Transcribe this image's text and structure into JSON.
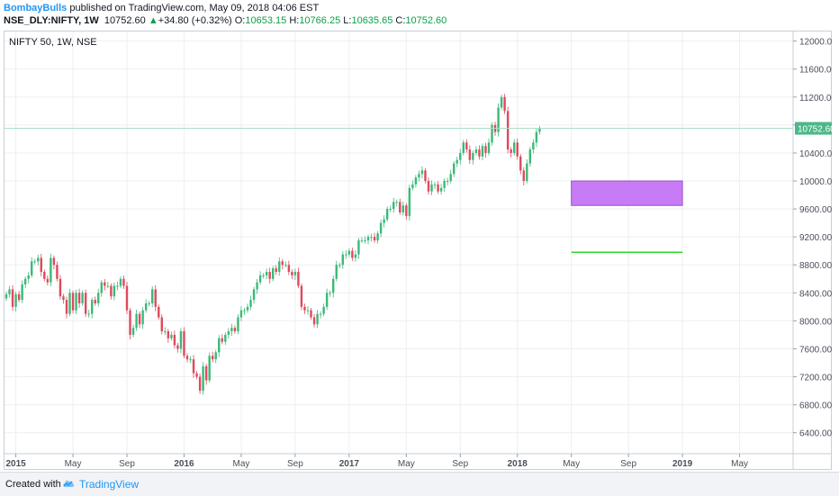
{
  "header": {
    "author": "BombayBulls",
    "published": "published on TradingView.com, May 09, 2018 04:06 EST",
    "symbol": "NSE_DLY:NIFTY, 1W",
    "last": "10752.60",
    "change": "+34.80 (+0.32%)",
    "o_label": "O:",
    "o_value": "10653.15",
    "h_label": "H:",
    "h_value": "10766.25",
    "l_label": "L:",
    "l_value": "10635.65",
    "c_label": "C:",
    "c_value": "10752.60"
  },
  "footer": {
    "created": "Created with",
    "brand": "TradingView",
    "logo_icon": "tradingview-cloud-icon"
  },
  "colors": {
    "up": "#3cb878",
    "down": "#e0495c",
    "rect_fill": "#c77cf5",
    "rect_border": "#9c4fd2",
    "level_line": "#2ad62a",
    "price_line": "#a8dfc6",
    "price_tag": "#4cb788",
    "grid": "#eceff3"
  },
  "chart_data": {
    "type": "candlestick",
    "legend_title": "NIFTY 50, 1W, NSE",
    "price_tag": "10752.60",
    "ylim": [
      6100,
      12150
    ],
    "y_ticks": [
      6400,
      6800,
      7200,
      7600,
      8000,
      8400,
      8800,
      9200,
      9600,
      10000,
      10400,
      10800,
      11200,
      11600,
      12000
    ],
    "y_tick_labels": [
      "6400.00",
      "6800.00",
      "7200.00",
      "7600.00",
      "8000.00",
      "8400.00",
      "8800.00",
      "9200.00",
      "9600.00",
      "10000.00",
      "10400.00",
      "10800.00",
      "11200.00",
      "11600.00",
      "12000.00"
    ],
    "x_tick_labels": [
      "2015",
      "May",
      "Sep",
      "2016",
      "May",
      "Sep",
      "2017",
      "May",
      "Sep",
      "2018",
      "May",
      "Sep",
      "2019",
      "May"
    ],
    "x_tick_bold": [
      true,
      false,
      false,
      true,
      false,
      false,
      true,
      false,
      false,
      true,
      false,
      false,
      true,
      false
    ],
    "x_tick_weeks": [
      3,
      21,
      38,
      56,
      74,
      91,
      108,
      126,
      143,
      161,
      178,
      196,
      213,
      231
    ],
    "last_price": 10752.6,
    "zone": {
      "from_week": 178,
      "to_week": 213,
      "low": 9650,
      "high": 10000
    },
    "level_line": {
      "from_week": 178,
      "to_week": 213,
      "price": 8980
    },
    "closes": [
      8380,
      8450,
      8200,
      8380,
      8300,
      8520,
      8600,
      8650,
      8850,
      8850,
      8900,
      8700,
      8600,
      8550,
      8900,
      8800,
      8600,
      8350,
      8300,
      8100,
      8400,
      8150,
      8400,
      8250,
      8400,
      8100,
      8100,
      8300,
      8250,
      8400,
      8550,
      8500,
      8500,
      8350,
      8500,
      8500,
      8600,
      8500,
      8150,
      7800,
      7900,
      8100,
      7950,
      8150,
      8250,
      8250,
      8450,
      8200,
      8050,
      7850,
      7850,
      7750,
      7800,
      7650,
      7600,
      7850,
      7500,
      7450,
      7450,
      7250,
      7200,
      7000,
      7350,
      7150,
      7500,
      7450,
      7550,
      7750,
      7700,
      7800,
      7850,
      7900,
      7850,
      8050,
      8150,
      8150,
      8200,
      8300,
      8450,
      8550,
      8650,
      8650,
      8700,
      8600,
      8750,
      8700,
      8850,
      8800,
      8800,
      8700,
      8650,
      8700,
      8500,
      8200,
      8150,
      8150,
      8050,
      7950,
      8100,
      8100,
      8200,
      8400,
      8400,
      8600,
      8800,
      8800,
      8950,
      8950,
      9000,
      8900,
      8950,
      9150,
      9150,
      9150,
      9200,
      9200,
      9150,
      9250,
      9400,
      9450,
      9600,
      9600,
      9700,
      9700,
      9550,
      9650,
      9500,
      9900,
      9950,
      10050,
      10100,
      10150,
      10000,
      9850,
      9950,
      9950,
      9850,
      9900,
      10000,
      10000,
      10100,
      10250,
      10300,
      10400,
      10550,
      10450,
      10300,
      10400,
      10450,
      10350,
      10500,
      10400,
      10550,
      10800,
      10700,
      11050,
      11200,
      11000,
      10450,
      10400,
      10550,
      10350,
      10150,
      10000,
      10250,
      10450,
      10550,
      10700,
      10752.6
    ]
  }
}
